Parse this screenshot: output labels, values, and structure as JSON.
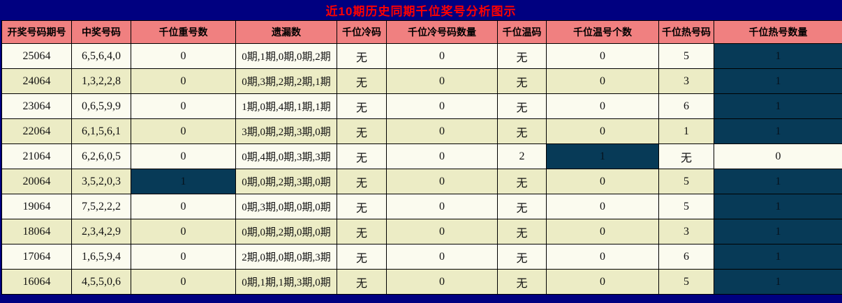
{
  "title": "近10期历史同期千位奖号分析图示",
  "colors": {
    "page_background": "#000080",
    "title_text": "#ff0000",
    "header_background": "#f08080",
    "row_light": "#fbfbef",
    "row_green": "#ececc5",
    "highlight_cell": "#073a57",
    "grid_line": "#000000"
  },
  "table": {
    "headers": [
      "开奖号码期号",
      "中奖号码",
      "千位重号数",
      "遗漏数",
      "千位冷码",
      "千位冷号码数量",
      "千位温码",
      "千位温号个数",
      "千位热号码",
      "千位热号数量"
    ],
    "rows": [
      {
        "cells": [
          "25064",
          "6,5,6,4,0",
          "0",
          "0期,1期,0期,0期,2期",
          "无",
          "0",
          "无",
          "0",
          "5",
          "1"
        ],
        "dark": [
          9
        ]
      },
      {
        "cells": [
          "24064",
          "1,3,2,2,8",
          "0",
          "0期,3期,2期,2期,1期",
          "无",
          "0",
          "无",
          "0",
          "3",
          "1"
        ],
        "dark": [
          9
        ]
      },
      {
        "cells": [
          "23064",
          "0,6,5,9,9",
          "0",
          "1期,0期,4期,1期,1期",
          "无",
          "0",
          "无",
          "0",
          "6",
          "1"
        ],
        "dark": [
          9
        ]
      },
      {
        "cells": [
          "22064",
          "6,1,5,6,1",
          "0",
          "3期,0期,2期,3期,0期",
          "无",
          "0",
          "无",
          "0",
          "1",
          "1"
        ],
        "dark": [
          9
        ]
      },
      {
        "cells": [
          "21064",
          "6,2,6,0,5",
          "0",
          "0期,4期,0期,3期,3期",
          "无",
          "0",
          "2",
          "1",
          "无",
          "0"
        ],
        "dark": [
          7
        ]
      },
      {
        "cells": [
          "20064",
          "3,5,2,0,3",
          "1",
          "0期,0期,2期,3期,0期",
          "无",
          "0",
          "无",
          "0",
          "5",
          "1"
        ],
        "dark": [
          2,
          9
        ]
      },
      {
        "cells": [
          "19064",
          "7,5,2,2,2",
          "0",
          "0期,3期,0期,0期,0期",
          "无",
          "0",
          "无",
          "0",
          "5",
          "1"
        ],
        "dark": [
          9
        ]
      },
      {
        "cells": [
          "18064",
          "2,3,4,2,9",
          "0",
          "0期,0期,2期,0期,0期",
          "无",
          "0",
          "无",
          "0",
          "3",
          "1"
        ],
        "dark": [
          9
        ]
      },
      {
        "cells": [
          "17064",
          "1,6,5,9,4",
          "0",
          "2期,0期,0期,0期,3期",
          "无",
          "0",
          "无",
          "0",
          "6",
          "1"
        ],
        "dark": [
          9
        ]
      },
      {
        "cells": [
          "16064",
          "4,5,5,0,6",
          "0",
          "0期,1期,1期,3期,0期",
          "无",
          "0",
          "无",
          "0",
          "5",
          "1"
        ],
        "dark": [
          9
        ]
      }
    ]
  }
}
